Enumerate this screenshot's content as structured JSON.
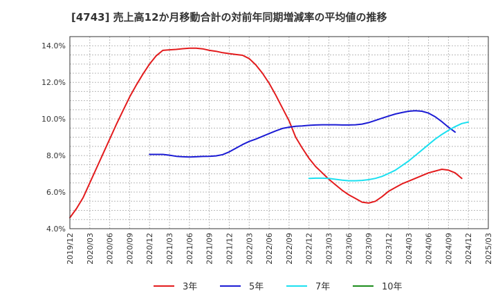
{
  "chart_data": {
    "type": "line",
    "title": "[4743]  売上高12か月移動合計の対前年同期増減率の平均値の推移",
    "xlabel": "",
    "ylabel": "",
    "ylim": [
      4.0,
      14.5
    ],
    "yticks": [
      4.0,
      6.0,
      8.0,
      10.0,
      12.0,
      14.0
    ],
    "ytick_labels": [
      "4.0%",
      "6.0%",
      "8.0%",
      "10.0%",
      "12.0%",
      "14.0%"
    ],
    "xtick_labels": [
      "2019/12",
      "2020/03",
      "2020/06",
      "2020/09",
      "2020/12",
      "2021/03",
      "2021/06",
      "2021/09",
      "2021/12",
      "2022/03",
      "2022/06",
      "2022/09",
      "2022/12",
      "2023/03",
      "2023/06",
      "2023/09",
      "2023/12",
      "2024/03",
      "2024/06",
      "2024/09",
      "2024/12",
      "2025/03"
    ],
    "grid": true,
    "legend_position": "bottom",
    "series": [
      {
        "name": "3年",
        "color": "#e31a1c",
        "start_index": 0,
        "values": [
          4.6,
          5.1,
          5.7,
          6.5,
          7.3,
          8.1,
          8.9,
          9.7,
          10.45,
          11.2,
          11.85,
          12.45,
          13.0,
          13.45,
          13.75,
          13.78,
          13.8,
          13.84,
          13.87,
          13.87,
          13.83,
          13.75,
          13.7,
          13.62,
          13.57,
          13.52,
          13.48,
          13.3,
          12.95,
          12.5,
          11.95,
          11.3,
          10.6,
          9.9,
          9.0,
          8.4,
          7.85,
          7.4,
          7.05,
          6.7,
          6.4,
          6.1,
          5.85,
          5.65,
          5.45,
          5.4,
          5.5,
          5.75,
          6.05,
          6.25,
          6.45,
          6.6,
          6.75,
          6.9,
          7.05,
          7.15,
          7.25,
          7.2,
          7.05,
          6.75
        ]
      },
      {
        "name": "5年",
        "color": "#1a1ad4",
        "start_index": 12,
        "values": [
          8.06,
          8.06,
          8.06,
          8.02,
          7.96,
          7.93,
          7.92,
          7.93,
          7.95,
          7.96,
          7.98,
          8.05,
          8.2,
          8.4,
          8.6,
          8.77,
          8.9,
          9.05,
          9.2,
          9.35,
          9.48,
          9.55,
          9.6,
          9.62,
          9.65,
          9.67,
          9.68,
          9.68,
          9.68,
          9.67,
          9.67,
          9.68,
          9.72,
          9.8,
          9.92,
          10.04,
          10.16,
          10.27,
          10.35,
          10.42,
          10.45,
          10.42,
          10.32,
          10.12,
          9.85,
          9.55,
          9.28
        ]
      },
      {
        "name": "7年",
        "color": "#1ae0f0",
        "start_index": 36,
        "values": [
          6.75,
          6.76,
          6.76,
          6.75,
          6.7,
          6.65,
          6.62,
          6.62,
          6.64,
          6.68,
          6.75,
          6.86,
          7.02,
          7.2,
          7.45,
          7.7,
          8.0,
          8.3,
          8.6,
          8.9,
          9.15,
          9.38,
          9.58,
          9.75,
          9.83
        ]
      },
      {
        "name": "10年",
        "color": "#1a8c1a",
        "start_index": 0,
        "values": []
      }
    ]
  }
}
